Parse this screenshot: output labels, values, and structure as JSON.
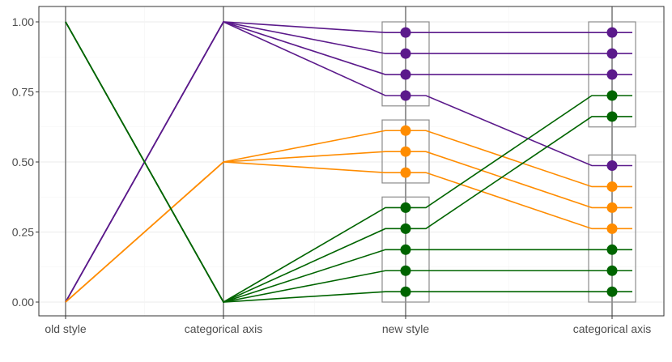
{
  "chart_data": {
    "type": "line",
    "title": "",
    "xlabel": "",
    "ylabel": "",
    "ylim": [
      0,
      1
    ],
    "y_ticks": [
      {
        "value": 0.0,
        "label": "0.00"
      },
      {
        "value": 0.25,
        "label": "0.25"
      },
      {
        "value": 0.5,
        "label": "0.50"
      },
      {
        "value": 0.75,
        "label": "0.75"
      },
      {
        "value": 1.0,
        "label": "1.00"
      }
    ],
    "x_axes": [
      "old style",
      "categorical axis",
      "new style",
      "categorical axis"
    ],
    "grid": true,
    "legend": "none",
    "colors": {
      "purple": "#5b1a8b",
      "orange": "#ff8c00",
      "green": "#006400",
      "axis_line": "#7f7f7f",
      "box": "#8c8c8c",
      "grid": "#ebebeb"
    },
    "series": [
      {
        "color_key": "purple",
        "values": [
          0,
          1,
          0.962,
          0.962
        ]
      },
      {
        "color_key": "purple",
        "values": [
          0,
          1,
          0.887,
          0.887
        ]
      },
      {
        "color_key": "purple",
        "values": [
          0,
          1,
          0.812,
          0.812
        ]
      },
      {
        "color_key": "purple",
        "values": [
          0,
          1,
          0.737,
          0.487
        ]
      },
      {
        "color_key": "orange",
        "values": [
          0,
          0.5,
          0.612,
          0.412
        ]
      },
      {
        "color_key": "orange",
        "values": [
          0,
          0.5,
          0.537,
          0.337
        ]
      },
      {
        "color_key": "orange",
        "values": [
          0,
          0.5,
          0.462,
          0.262
        ]
      },
      {
        "color_key": "green",
        "values": [
          1,
          0,
          0.337,
          0.737
        ]
      },
      {
        "color_key": "green",
        "values": [
          1,
          0,
          0.262,
          0.662
        ]
      },
      {
        "color_key": "green",
        "values": [
          1,
          0,
          0.187,
          0.187
        ]
      },
      {
        "color_key": "green",
        "values": [
          1,
          0,
          0.112,
          0.112
        ]
      },
      {
        "color_key": "green",
        "values": [
          1,
          0,
          0.037,
          0.037
        ]
      }
    ],
    "boxes": [
      {
        "axis": 2,
        "ymin": 0.7,
        "ymax": 1.0
      },
      {
        "axis": 2,
        "ymin": 0.425,
        "ymax": 0.65
      },
      {
        "axis": 2,
        "ymin": 0.0,
        "ymax": 0.375
      },
      {
        "axis": 3,
        "ymin": 0.625,
        "ymax": 1.0
      },
      {
        "axis": 3,
        "ymin": 0.0,
        "ymax": 0.525
      }
    ]
  }
}
